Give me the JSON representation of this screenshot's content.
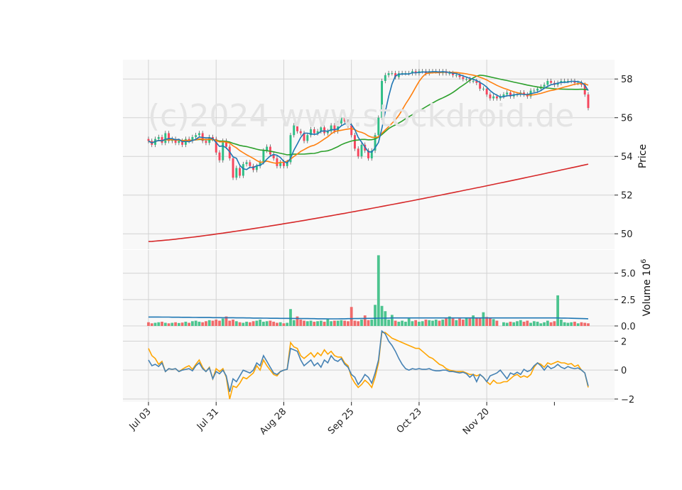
{
  "watermark": "(c)2024 www.stockdroid.de",
  "colors": {
    "up": "#2ebd85",
    "down": "#f6465d",
    "volume_up": "#4cc48f",
    "volume_down": "#f06a6a",
    "ma_short": "#1f77b4",
    "ma_mid": "#ff7f0e",
    "ma_long": "#2ca02c",
    "ma_200": "#d62728",
    "osc_a": "#4682b4",
    "osc_b": "#ffa500",
    "panel_bg": "#f8f8f8",
    "grid": "#d2d2d2"
  },
  "chart_data": [
    {
      "type": "candlestick",
      "ylabel": "Price",
      "ylim": [
        49.2,
        59.0
      ],
      "yticks": [
        "50",
        "52",
        "54",
        "56",
        "58"
      ],
      "x_ticks": [
        "Jul 03",
        "Jul 31",
        "Aug 28",
        "Sep 25",
        "Oct 23",
        "Nov 20"
      ],
      "grid": true,
      "close": [
        54.8,
        54.6,
        54.9,
        55.0,
        54.7,
        55.2,
        54.8,
        54.9,
        54.7,
        54.8,
        54.6,
        54.9,
        54.8,
        55.0,
        55.1,
        55.2,
        54.8,
        54.7,
        55.0,
        54.9,
        54.2,
        53.8,
        54.8,
        54.5,
        53.9,
        52.9,
        53.4,
        53.0,
        53.6,
        53.7,
        53.5,
        53.3,
        53.5,
        53.7,
        54.3,
        54.5,
        54.1,
        53.9,
        53.5,
        53.7,
        53.5,
        53.7,
        55.1,
        55.6,
        55.3,
        55.2,
        54.8,
        55.1,
        55.4,
        55.2,
        55.3,
        55.5,
        55.2,
        55.3,
        55.6,
        55.3,
        55.7,
        56.0,
        55.8,
        55.6,
        55.1,
        54.4,
        54.0,
        54.6,
        54.3,
        53.9,
        54.3,
        55.1,
        56.0,
        57.9,
        58.2,
        58.3,
        58.3,
        58.1,
        58.3,
        58.3,
        58.3,
        58.3,
        58.4,
        58.3,
        58.4,
        58.4,
        58.3,
        58.4,
        58.4,
        58.4,
        58.3,
        58.4,
        58.3,
        58.3,
        58.2,
        58.2,
        58.1,
        58.0,
        58.0,
        57.9,
        57.9,
        57.8,
        57.5,
        57.5,
        57.2,
        57.0,
        57.1,
        57.0,
        57.1,
        57.2,
        57.3,
        57.1,
        57.2,
        57.2,
        57.3,
        57.2,
        57.1,
        57.4,
        57.4,
        57.5,
        57.6,
        57.7,
        57.9,
        57.8,
        57.7,
        57.8,
        57.9,
        57.9,
        57.9,
        57.9,
        57.8,
        57.8,
        57.7,
        57.2,
        56.5
      ],
      "volume_ylabel": "Volume  10^6",
      "volume_ylim": [
        0,
        7.2
      ],
      "volume_yticks": [
        "0.0",
        "2.5",
        "5.0"
      ],
      "volume": [
        0.35,
        0.25,
        0.3,
        0.35,
        0.4,
        0.3,
        0.25,
        0.3,
        0.35,
        0.28,
        0.32,
        0.4,
        0.3,
        0.45,
        0.5,
        0.4,
        0.35,
        0.45,
        0.55,
        0.5,
        0.6,
        0.5,
        0.7,
        0.9,
        0.5,
        0.6,
        0.45,
        0.35,
        0.3,
        0.4,
        0.35,
        0.45,
        0.5,
        0.6,
        0.4,
        0.45,
        0.5,
        0.4,
        0.3,
        0.35,
        0.25,
        0.3,
        1.6,
        0.55,
        0.9,
        0.6,
        0.5,
        0.45,
        0.5,
        0.4,
        0.45,
        0.5,
        0.4,
        0.7,
        0.45,
        0.5,
        0.5,
        0.55,
        0.5,
        0.45,
        1.8,
        0.5,
        0.45,
        0.6,
        1.0,
        0.55,
        0.6,
        2.0,
        6.7,
        1.9,
        1.4,
        0.6,
        1.05,
        0.5,
        0.4,
        0.5,
        0.4,
        0.7,
        0.45,
        0.55,
        0.4,
        0.45,
        0.6,
        0.55,
        0.5,
        0.6,
        0.5,
        0.6,
        0.7,
        0.9,
        0.7,
        0.55,
        0.7,
        0.6,
        0.8,
        0.7,
        1.0,
        0.75,
        0.8,
        1.3,
        0.85,
        0.75,
        0.65,
        0.5,
        0.0,
        0.35,
        0.3,
        0.4,
        0.35,
        0.45,
        0.55,
        0.4,
        0.5,
        0.3,
        0.45,
        0.4,
        0.25,
        0.35,
        0.5,
        0.35,
        0.45,
        2.9,
        0.6,
        0.35,
        0.3,
        0.35,
        0.4,
        0.25,
        0.35,
        0.3,
        0.25
      ],
      "volume_ma": [
        0.85,
        0.85,
        0.85,
        0.85,
        0.84,
        0.84,
        0.84,
        0.83,
        0.83,
        0.83,
        0.82,
        0.82,
        0.82,
        0.81,
        0.81,
        0.8,
        0.8,
        0.8,
        0.8,
        0.79,
        0.79,
        0.79,
        0.78,
        0.78,
        0.78,
        0.78,
        0.77,
        0.77,
        0.77,
        0.76,
        0.76,
        0.75,
        0.75,
        0.75,
        0.74,
        0.74,
        0.73,
        0.73,
        0.73,
        0.72,
        0.72,
        0.72,
        0.71,
        0.71,
        0.71,
        0.7,
        0.7,
        0.7,
        0.69,
        0.69,
        0.68,
        0.68,
        0.68,
        0.67,
        0.67,
        0.67,
        0.67,
        0.68,
        0.68,
        0.69,
        0.69,
        0.7,
        0.7,
        0.71,
        0.71,
        0.72,
        0.72,
        0.73,
        0.74,
        0.74,
        0.75,
        0.75,
        0.76,
        0.76,
        0.76,
        0.76,
        0.76,
        0.76,
        0.76,
        0.76,
        0.76,
        0.76,
        0.76,
        0.76,
        0.76,
        0.76,
        0.76,
        0.76,
        0.76,
        0.76,
        0.76,
        0.76,
        0.76,
        0.76,
        0.76,
        0.76,
        0.76,
        0.76,
        0.76,
        0.76,
        0.76,
        0.76,
        0.76,
        0.76,
        0.76,
        0.76,
        0.76,
        0.76,
        0.76,
        0.76,
        0.76,
        0.76,
        0.76,
        0.76,
        0.76,
        0.76,
        0.76,
        0.76,
        0.76,
        0.76,
        0.76,
        0.76,
        0.75,
        0.75,
        0.74,
        0.73,
        0.72,
        0.71,
        0.7,
        0.69,
        0.68
      ],
      "osc_ylim": [
        -2.2,
        3.0
      ],
      "osc_yticks": [
        "−2",
        "0",
        "2"
      ],
      "osc_a": [
        0.7,
        0.3,
        0.4,
        0.25,
        0.5,
        -0.1,
        0.1,
        0.05,
        0.1,
        -0.1,
        0.0,
        0.05,
        0.1,
        -0.05,
        0.3,
        0.5,
        0.1,
        -0.1,
        0.15,
        -0.6,
        -0.1,
        -0.25,
        0.0,
        -0.4,
        -1.5,
        -0.6,
        -0.8,
        -0.4,
        0.0,
        -0.1,
        -0.2,
        0.0,
        0.5,
        0.3,
        1.0,
        0.6,
        0.2,
        -0.2,
        -0.3,
        -0.1,
        0.0,
        0.05,
        1.5,
        1.4,
        1.3,
        0.7,
        0.3,
        0.5,
        0.7,
        0.3,
        0.5,
        0.2,
        0.7,
        0.5,
        1.0,
        0.7,
        0.6,
        0.8,
        0.4,
        0.2,
        -0.3,
        -0.5,
        -1.0,
        -0.7,
        -0.3,
        -0.5,
        -0.9,
        -0.2,
        0.7,
        2.7,
        2.5,
        2.0,
        1.7,
        1.3,
        0.8,
        0.4,
        0.1,
        0.0,
        0.1,
        0.05,
        0.1,
        0.05,
        0.05,
        0.1,
        0.0,
        -0.05,
        -0.05,
        0.0,
        0.0,
        -0.1,
        -0.1,
        -0.15,
        -0.2,
        -0.15,
        -0.25,
        -0.5,
        -0.3,
        -0.8,
        -0.3,
        -0.5,
        -0.8,
        -0.4,
        -0.3,
        -0.2,
        0.0,
        -0.3,
        -0.6,
        -0.2,
        -0.3,
        -0.15,
        -0.3,
        0.05,
        -0.1,
        0.0,
        0.3,
        0.5,
        0.3,
        0.0,
        0.3,
        0.1,
        0.2,
        0.4,
        0.2,
        0.1,
        0.25,
        0.15,
        0.1,
        0.15,
        0.0,
        -0.2,
        -1.1
      ],
      "osc_b": [
        1.5,
        1.0,
        0.8,
        0.4,
        0.6,
        -0.1,
        0.1,
        0.05,
        0.1,
        -0.1,
        0.05,
        0.2,
        0.3,
        0.05,
        0.4,
        0.7,
        0.2,
        -0.1,
        0.2,
        -0.6,
        0.1,
        -0.1,
        0.1,
        -0.5,
        -2.0,
        -1.1,
        -1.2,
        -0.9,
        -0.5,
        -0.6,
        -0.4,
        -0.2,
        0.3,
        0.0,
        0.7,
        0.3,
        0.0,
        -0.3,
        -0.4,
        -0.1,
        0.0,
        0.05,
        1.9,
        1.6,
        1.5,
        1.0,
        0.8,
        1.0,
        1.2,
        0.9,
        1.2,
        1.0,
        1.4,
        1.1,
        1.3,
        1.0,
        0.9,
        0.9,
        0.5,
        0.3,
        -0.5,
        -0.9,
        -1.2,
        -1.0,
        -0.7,
        -0.9,
        -1.2,
        -0.5,
        0.5,
        2.6,
        2.6,
        2.4,
        2.2,
        2.1,
        2.0,
        1.9,
        1.8,
        1.7,
        1.6,
        1.5,
        1.5,
        1.3,
        1.1,
        0.9,
        0.8,
        0.6,
        0.4,
        0.3,
        0.1,
        0.0,
        -0.05,
        -0.1,
        -0.1,
        -0.1,
        -0.2,
        -0.3,
        -0.3,
        -0.4,
        -0.3,
        -0.5,
        -0.8,
        -1.0,
        -0.7,
        -0.9,
        -0.9,
        -0.8,
        -0.8,
        -0.6,
        -0.4,
        -0.3,
        -0.5,
        -0.4,
        -0.5,
        -0.3,
        0.2,
        0.5,
        0.4,
        0.2,
        0.5,
        0.4,
        0.5,
        0.6,
        0.5,
        0.5,
        0.4,
        0.45,
        0.25,
        0.35,
        0.0,
        -0.2,
        -1.2
      ]
    }
  ]
}
